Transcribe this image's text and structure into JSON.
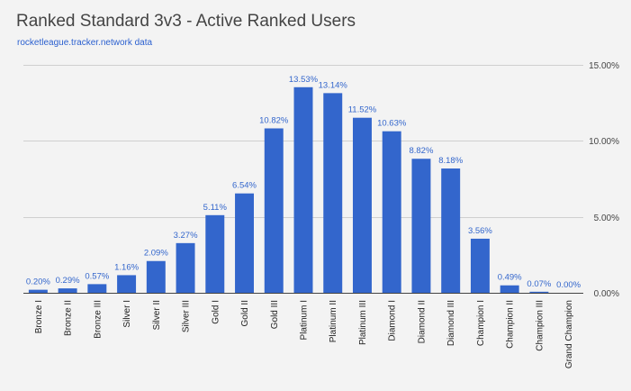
{
  "chart_data": {
    "type": "bar",
    "title": "Ranked Standard 3v3 - Active Ranked Users",
    "subtitle": "rocketleague.tracker.network data",
    "categories": [
      "Bronze I",
      "Bronze II",
      "Bronze III",
      "Silver I",
      "Silver II",
      "Silver III",
      "Gold I",
      "Gold II",
      "Gold III",
      "Platinum I",
      "Platinum II",
      "Platinum III",
      "Diamond I",
      "Diamond II",
      "Diamond III",
      "Champion I",
      "Champion II",
      "Champion III",
      "Grand Champion"
    ],
    "values": [
      0.2,
      0.29,
      0.57,
      1.16,
      2.09,
      3.27,
      5.11,
      6.54,
      10.82,
      13.53,
      13.14,
      11.52,
      10.63,
      8.82,
      8.18,
      3.56,
      0.49,
      0.07,
      0.0
    ],
    "data_labels": [
      "0.20%",
      "0.29%",
      "0.57%",
      "1.16%",
      "2.09%",
      "3.27%",
      "5.11%",
      "6.54%",
      "10.82%",
      "13.53%",
      "13.14%",
      "11.52%",
      "10.63%",
      "8.82%",
      "8.18%",
      "3.56%",
      "0.49%",
      "0.07%",
      "0.00%"
    ],
    "y_ticks": [
      0,
      5,
      10,
      15
    ],
    "y_tick_labels": [
      "0.00%",
      "5.00%",
      "10.00%",
      "15.00%"
    ],
    "ylim": [
      0,
      15
    ],
    "y_axis_side": "right",
    "grid": true,
    "legend": "none",
    "xlabel": "",
    "ylabel": "",
    "colors": {
      "bar": "#3366cc",
      "data_label": "#3366cc",
      "grid": "#cfcfcf",
      "axis": "#444444"
    }
  }
}
